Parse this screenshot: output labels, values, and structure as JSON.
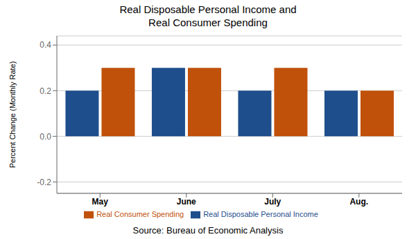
{
  "chart_data": {
    "type": "bar",
    "title": "Real Disposable Personal Income and\nReal Consumer Spending",
    "categories": [
      "May",
      "June",
      "July",
      "Aug."
    ],
    "series": [
      {
        "name": "Real Disposable Personal Income",
        "color": "#1f4e8c",
        "values": [
          0.2,
          0.3,
          0.2,
          0.2
        ]
      },
      {
        "name": "Real Consumer Spending",
        "color": "#c0510a",
        "values": [
          0.3,
          0.3,
          0.3,
          0.2
        ]
      }
    ],
    "ylabel": "Percent Change (Monthly Rate)",
    "ylim": [
      -0.25,
      0.44
    ],
    "yticks": [
      -0.2,
      {
        "value": 0,
        "label": "0.0"
      },
      0.2,
      0.4
    ],
    "grid": true,
    "legend": "bottom",
    "annotations": [
      "Source:  Bureau of Economic Analysis"
    ]
  }
}
